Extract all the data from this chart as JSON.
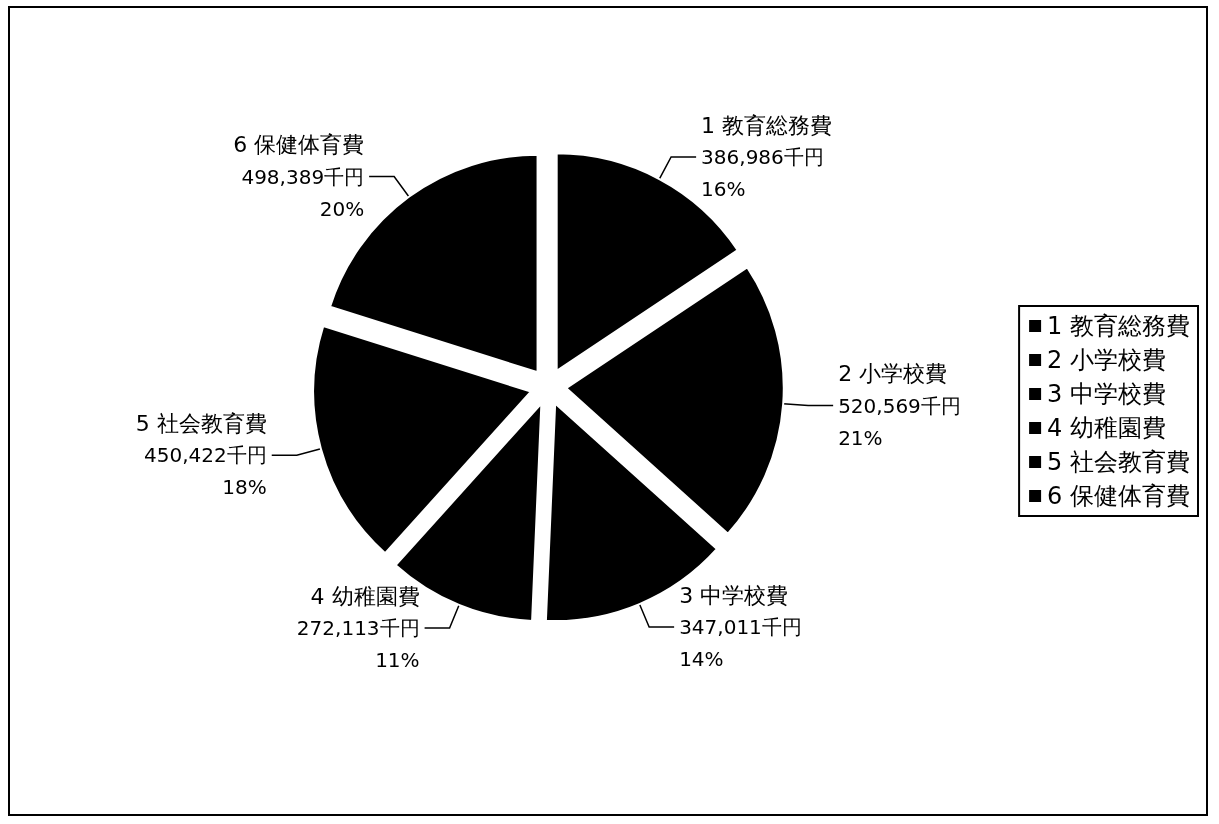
{
  "chart_data": {
    "type": "pie",
    "categories": [
      "1 教育総務費",
      "2 小学校費",
      "3 中学校費",
      "4 幼稚園費",
      "5 社会教育費",
      "6 保健体育費"
    ],
    "values": [
      386986,
      520569,
      347011,
      272113,
      450422,
      498389
    ],
    "colors": [
      "#000000",
      "#000000",
      "#000000",
      "#000000",
      "#000000",
      "#000000"
    ],
    "value_labels": [
      "386,986千円\n16%",
      "520,569千円\n21%",
      "347,011千円\n14%",
      "272,113千円\n11%",
      "450,422千円\n18%",
      "498,389千円\n20%"
    ],
    "legend": "right"
  }
}
